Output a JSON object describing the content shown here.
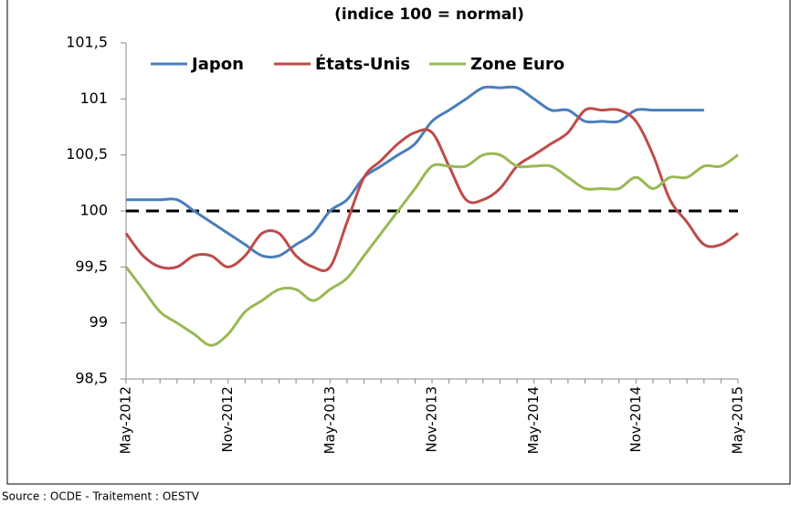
{
  "chart_data": {
    "type": "line",
    "title": "(indice 100 = normal)",
    "source": "Source : OCDE  -  Traitement : OESTV",
    "categories": [
      "May-2012",
      null,
      null,
      null,
      null,
      null,
      "Nov-2012",
      null,
      null,
      null,
      null,
      null,
      "May-2013",
      null,
      null,
      null,
      null,
      null,
      "Nov-2013",
      null,
      null,
      null,
      null,
      null,
      "May-2014",
      null,
      null,
      null,
      null,
      null,
      "Nov-2014",
      null,
      null,
      null,
      null,
      null,
      "May-2015"
    ],
    "series": [
      {
        "name": "Japon",
        "color": "#4a7ebb",
        "values": [
          100.1,
          100.1,
          100.1,
          100.1,
          100.0,
          99.9,
          99.8,
          99.7,
          99.6,
          99.6,
          99.7,
          99.8,
          100.0,
          100.1,
          100.3,
          100.4,
          100.5,
          100.6,
          100.8,
          100.9,
          101.0,
          101.1,
          101.1,
          101.1,
          101.0,
          100.9,
          100.9,
          100.8,
          100.8,
          100.8,
          100.9,
          100.9,
          100.9,
          100.9,
          100.9,
          null,
          null
        ]
      },
      {
        "name": "États-Unis",
        "color": "#be4b48",
        "values": [
          99.8,
          99.6,
          99.5,
          99.5,
          99.6,
          99.6,
          99.5,
          99.6,
          99.8,
          99.8,
          99.6,
          99.5,
          99.5,
          99.9,
          100.3,
          100.45,
          100.6,
          100.7,
          100.7,
          100.4,
          100.1,
          100.1,
          100.2,
          100.4,
          100.5,
          100.6,
          100.7,
          100.9,
          100.9,
          100.9,
          100.8,
          100.5,
          100.1,
          99.9,
          99.7,
          99.7,
          99.8
        ]
      },
      {
        "name": "Zone Euro",
        "color": "#98b954",
        "values": [
          99.5,
          99.3,
          99.1,
          99.0,
          98.9,
          98.8,
          98.9,
          99.1,
          99.2,
          99.3,
          99.3,
          99.2,
          99.3,
          99.4,
          99.6,
          99.8,
          100.0,
          100.2,
          100.4,
          100.4,
          100.4,
          100.5,
          100.5,
          100.4,
          100.4,
          100.4,
          100.3,
          100.2,
          100.2,
          100.2,
          100.3,
          100.2,
          100.3,
          100.3,
          100.4,
          100.4,
          100.5
        ]
      }
    ],
    "reference_line": 100,
    "ylim": [
      98.5,
      101.5
    ],
    "yticks": [
      {
        "value": 98.5,
        "label": "98,5"
      },
      99,
      {
        "value": 99.5,
        "label": "99,5"
      },
      100,
      {
        "value": 100.5,
        "label": "100,5"
      },
      101,
      {
        "value": 101.5,
        "label": "101,5"
      }
    ],
    "legend": "top"
  }
}
